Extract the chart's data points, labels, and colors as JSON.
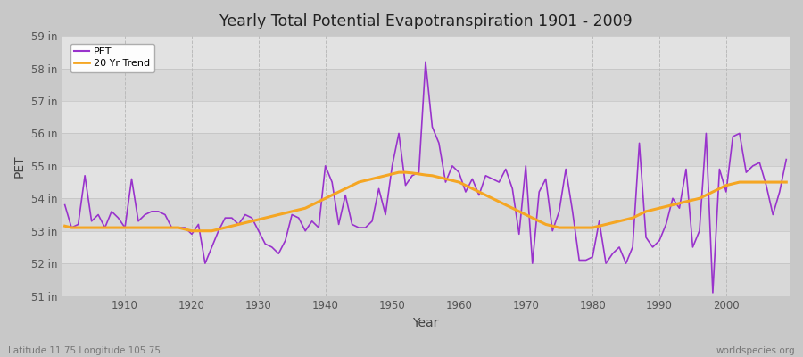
{
  "title": "Yearly Total Potential Evapotranspiration 1901 - 2009",
  "xlabel": "Year",
  "ylabel": "PET",
  "bottom_left_label": "Latitude 11.75 Longitude 105.75",
  "bottom_right_label": "worldspecies.org",
  "pet_color": "#9933cc",
  "trend_color": "#f5a623",
  "fig_bg_color": "#c8c8c8",
  "band_colors": [
    "#d8d8d8",
    "#e2e2e2"
  ],
  "grid_color": "#bbbbbb",
  "ylim": [
    51,
    59
  ],
  "yticks": [
    51,
    52,
    53,
    54,
    55,
    56,
    57,
    58,
    59
  ],
  "ytick_labels": [
    "51 in",
    "52 in",
    "53 in",
    "54 in",
    "55 in",
    "56 in",
    "57 in",
    "58 in",
    "59 in"
  ],
  "xticks": [
    1910,
    1920,
    1930,
    1940,
    1950,
    1960,
    1970,
    1980,
    1990,
    2000
  ],
  "years": [
    1901,
    1902,
    1903,
    1904,
    1905,
    1906,
    1907,
    1908,
    1909,
    1910,
    1911,
    1912,
    1913,
    1914,
    1915,
    1916,
    1917,
    1918,
    1919,
    1920,
    1921,
    1922,
    1923,
    1924,
    1925,
    1926,
    1927,
    1928,
    1929,
    1930,
    1931,
    1932,
    1933,
    1934,
    1935,
    1936,
    1937,
    1938,
    1939,
    1940,
    1941,
    1942,
    1943,
    1944,
    1945,
    1946,
    1947,
    1948,
    1949,
    1950,
    1951,
    1952,
    1953,
    1954,
    1955,
    1956,
    1957,
    1958,
    1959,
    1960,
    1961,
    1962,
    1963,
    1964,
    1965,
    1966,
    1967,
    1968,
    1969,
    1970,
    1971,
    1972,
    1973,
    1974,
    1975,
    1976,
    1977,
    1978,
    1979,
    1980,
    1981,
    1982,
    1983,
    1984,
    1985,
    1986,
    1987,
    1988,
    1989,
    1990,
    1991,
    1992,
    1993,
    1994,
    1995,
    1996,
    1997,
    1998,
    1999,
    2000,
    2001,
    2002,
    2003,
    2004,
    2005,
    2006,
    2007,
    2008,
    2009
  ],
  "pet": [
    53.8,
    53.1,
    53.2,
    54.7,
    53.3,
    53.5,
    53.1,
    53.6,
    53.4,
    53.1,
    54.6,
    53.3,
    53.5,
    53.6,
    53.6,
    53.5,
    53.1,
    53.1,
    53.1,
    52.9,
    53.2,
    52.0,
    52.5,
    53.0,
    53.4,
    53.4,
    53.2,
    53.5,
    53.4,
    53.0,
    52.6,
    52.5,
    52.3,
    52.7,
    53.5,
    53.4,
    53.0,
    53.3,
    53.1,
    55.0,
    54.5,
    53.2,
    54.1,
    53.2,
    53.1,
    53.1,
    53.3,
    54.3,
    53.5,
    55.0,
    56.0,
    54.4,
    54.7,
    54.8,
    58.2,
    56.2,
    55.7,
    54.5,
    55.0,
    54.8,
    54.2,
    54.6,
    54.1,
    54.7,
    54.6,
    54.5,
    54.9,
    54.3,
    52.9,
    55.0,
    52.0,
    54.2,
    54.6,
    53.0,
    53.6,
    54.9,
    53.6,
    52.1,
    52.1,
    52.2,
    53.3,
    52.0,
    52.3,
    52.5,
    52.0,
    52.5,
    55.7,
    52.8,
    52.5,
    52.7,
    53.2,
    54.0,
    53.7,
    54.9,
    52.5,
    53.0,
    56.0,
    51.1,
    54.9,
    54.2,
    55.9,
    56.0,
    54.8,
    55.0,
    55.1,
    54.4,
    53.5,
    54.2,
    55.2
  ],
  "trend": [
    53.15,
    53.1,
    53.1,
    53.1,
    53.1,
    53.1,
    53.1,
    53.1,
    53.1,
    53.1,
    53.1,
    53.1,
    53.1,
    53.1,
    53.1,
    53.1,
    53.1,
    53.1,
    53.05,
    53.0,
    53.0,
    53.0,
    53.0,
    53.05,
    53.1,
    53.15,
    53.2,
    53.25,
    53.3,
    53.35,
    53.4,
    53.45,
    53.5,
    53.55,
    53.6,
    53.65,
    53.7,
    53.8,
    53.9,
    54.0,
    54.1,
    54.2,
    54.3,
    54.4,
    54.5,
    54.55,
    54.6,
    54.65,
    54.7,
    54.75,
    54.8,
    54.8,
    54.78,
    54.75,
    54.72,
    54.7,
    54.65,
    54.6,
    54.55,
    54.5,
    54.4,
    54.3,
    54.2,
    54.1,
    54.0,
    53.9,
    53.8,
    53.7,
    53.6,
    53.5,
    53.4,
    53.3,
    53.2,
    53.15,
    53.1,
    53.1,
    53.1,
    53.1,
    53.1,
    53.1,
    53.15,
    53.2,
    53.25,
    53.3,
    53.35,
    53.4,
    53.5,
    53.6,
    53.65,
    53.7,
    53.75,
    53.8,
    53.85,
    53.9,
    53.95,
    54.0,
    54.1,
    54.2,
    54.3,
    54.4,
    54.45,
    54.5,
    54.5,
    54.5,
    54.5,
    54.5,
    54.5,
    54.5,
    54.5
  ]
}
